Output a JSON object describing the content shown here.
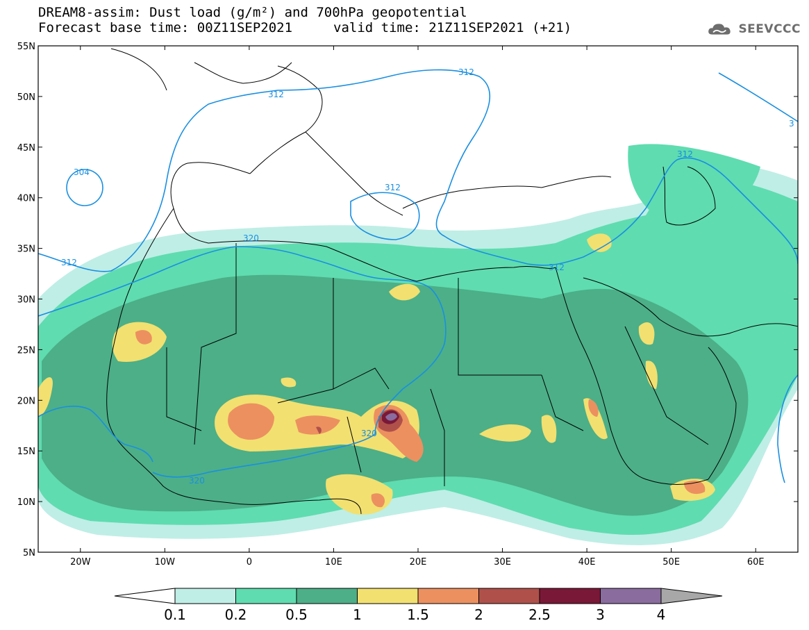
{
  "title": {
    "line1": "DREAM8-assim: Dust load (g/m²) and 700hPa geopotential",
    "line2": "Forecast base time: 00Z11SEP2021",
    "valid": "valid time: 21Z11SEP2021 (+21)"
  },
  "logo": {
    "text": "SEEVCCC",
    "icon": "cloud-logo-icon"
  },
  "map": {
    "lat_labels": [
      "55N",
      "50N",
      "45N",
      "40N",
      "35N",
      "30N",
      "25N",
      "20N",
      "15N",
      "10N",
      "5N"
    ],
    "lon_labels": [
      "20W",
      "10W",
      "0",
      "10E",
      "20E",
      "30E",
      "40E",
      "50E",
      "60E"
    ],
    "lat_range": [
      5,
      55
    ],
    "lon_range": [
      -25,
      65
    ],
    "isolines": [
      "312",
      "312",
      "312",
      "312",
      "312",
      "320",
      "320",
      "320",
      "312",
      "304",
      "3"
    ]
  },
  "colorbar": {
    "levels": [
      "0.1",
      "0.2",
      "0.5",
      "1",
      "1.5",
      "2",
      "2.5",
      "3",
      "4"
    ],
    "colors": [
      "#bfeee6",
      "#5fdcb0",
      "#4caf88",
      "#f2e070",
      "#ec9060",
      "#b0504a",
      "#7a1838",
      "#8a6c9e"
    ],
    "under_color": "#ffffff",
    "over_color": "#a8a8a8"
  },
  "palette": {
    "c01": "#bfeee6",
    "c02": "#5fdcb0",
    "c05": "#4caf88",
    "c1": "#f2e070",
    "c15": "#ec9060",
    "c2": "#b0504a",
    "c25": "#7a1838",
    "c3": "#8a6c9e",
    "iso": "#1a8fe0"
  }
}
